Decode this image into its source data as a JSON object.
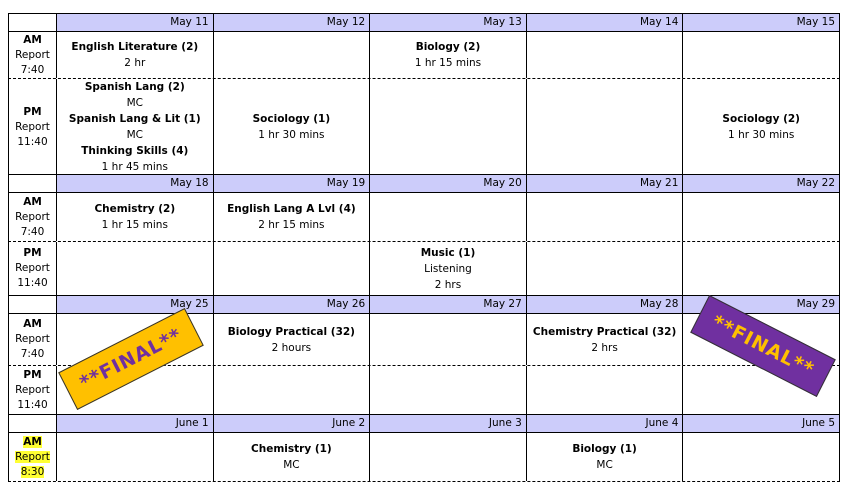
{
  "labels": {
    "am": "AM",
    "pm": "PM",
    "report": "Report",
    "am_time": "7:40",
    "pm_time": "11:40",
    "am_time_late": "8:30"
  },
  "weeks": [
    {
      "dates": [
        "May 11",
        "May 12",
        "May 13",
        "May 14",
        "May 15"
      ],
      "am": [
        [
          {
            "title": "English Literature (2)",
            "detail": "2 hr"
          }
        ],
        [],
        [
          {
            "title": "Biology (2)",
            "detail": "1 hr 15 mins"
          }
        ],
        [],
        []
      ],
      "pm": [
        [
          {
            "title": "Spanish Lang (2)",
            "detail": "MC"
          },
          {
            "title": "Spanish Lang & Lit (1)",
            "detail": "MC"
          },
          {
            "title": "Thinking Skills (4)",
            "detail": "1 hr 45 mins"
          }
        ],
        [
          {
            "title": "Sociology (1)",
            "detail": "1 hr 30 mins"
          }
        ],
        [],
        [],
        [
          {
            "title": "Sociology (2)",
            "detail": "1 hr 30 mins"
          }
        ]
      ]
    },
    {
      "dates": [
        "May 18",
        "May 19",
        "May 20",
        "May 21",
        "May 22"
      ],
      "am": [
        [
          {
            "title": "Chemistry (2)",
            "detail": "1 hr 15 mins"
          }
        ],
        [
          {
            "title": "English Lang A Lvl (4)",
            "detail": "2 hr 15 mins"
          }
        ],
        [],
        [],
        []
      ],
      "pm": [
        [],
        [],
        [
          {
            "title": "Music (1)",
            "detail": "Listening"
          },
          {
            "title": "",
            "detail": "2 hrs"
          }
        ],
        [],
        []
      ]
    },
    {
      "dates": [
        "May 25",
        "May 26",
        "May 27",
        "May 28",
        "May 29"
      ],
      "am": [
        [],
        [
          {
            "title": "Biology Practical (32)",
            "detail": "2 hours"
          }
        ],
        [],
        [
          {
            "title": "Chemistry Practical (32)",
            "detail": "2 hrs"
          }
        ],
        []
      ],
      "pm": [
        [],
        [],
        [],
        [],
        []
      ]
    },
    {
      "dates": [
        "June 1",
        "June 2",
        "June 3",
        "June 4",
        "June 5"
      ],
      "am": [
        [],
        [
          {
            "title": "Chemistry (1)",
            "detail": "MC"
          }
        ],
        [],
        [
          {
            "title": "Biology (1)",
            "detail": "MC"
          }
        ],
        []
      ]
    }
  ],
  "stamps": [
    {
      "text": "**FINAL**",
      "bg": "#ffc000",
      "color": "#7030a0"
    },
    {
      "text": "**FINAL**",
      "bg": "#7030a0",
      "color": "#ffc000"
    }
  ]
}
